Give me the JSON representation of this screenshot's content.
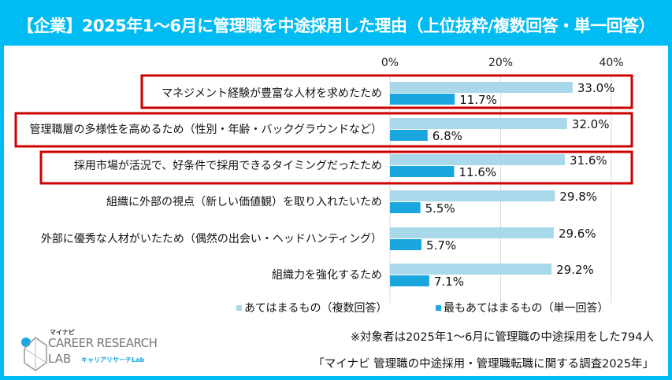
{
  "title": "【企業】2025年1～6月に管理職を中途採用した理由（上位抜粋/複数回答・単一回答）",
  "chart_data": {
    "type": "bar",
    "orientation": "horizontal",
    "xlim": [
      0,
      40
    ],
    "ticks": [
      "0%",
      "20%",
      "40%"
    ],
    "tick_values": [
      0,
      20,
      40
    ],
    "categories": [
      "マネジメント経験が豊富な人材を求めたため",
      "管理職層の多様性を高めるため（性別・年齢・バックグラウンドなど）",
      "採用市場が活況で、好条件で採用できるタイミングだったため",
      "組織に外部の視点（新しい価値観）を取り入れたいため",
      "外部に優秀な人材がいたため（偶然の出会い・ヘッドハンティング）",
      "組織力を強化するため"
    ],
    "highlighted": [
      true,
      true,
      true,
      false,
      false,
      false
    ],
    "series": [
      {
        "name": "あてはまるもの（複数回答）",
        "color": "#a8d8ea",
        "values": [
          33.0,
          32.0,
          31.6,
          29.8,
          29.6,
          29.2
        ]
      },
      {
        "name": "最もあてはまるもの（単一回答）",
        "color": "#1aa6df",
        "values": [
          11.7,
          6.8,
          11.6,
          5.5,
          5.7,
          7.1
        ]
      }
    ],
    "legend_position": "bottom",
    "highlight_color": "#cc0000"
  },
  "notes": {
    "respondents": "※対象者は2025年1～6月に管理職の中途採用をした794人",
    "source": "「マイナビ 管理職の中途採用・管理職転職に関する調査2025年」"
  },
  "logo": {
    "top": "マイナビ",
    "line1": "CAREER RESEARCH",
    "line2": "LAB",
    "sub": "キャリアリサーチLab"
  }
}
